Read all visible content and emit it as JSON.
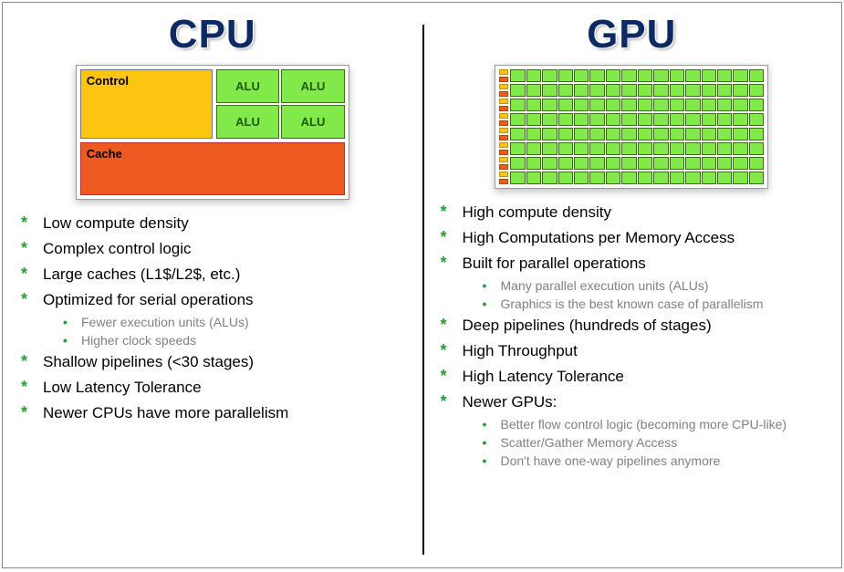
{
  "colors": {
    "heading": "#0d2a63",
    "bullet_star": "#2a9d3a",
    "sub_text": "#808080",
    "control_fill": "#fcc512",
    "alu_fill": "#82e94b",
    "alu_text": "#1e5a0e",
    "cache_fill": "#ee5b22",
    "gpu_core_fill": "#82e94b",
    "gpu_ctrl_top": "#fcc512",
    "gpu_ctrl_bottom": "#ee5b22",
    "divider": "#000000",
    "border": "#888888"
  },
  "cpu": {
    "title": "CPU",
    "diagram": {
      "control_label": "Control",
      "alu_label": "ALU",
      "alu_count": 4,
      "cache_label": "Cache"
    },
    "bullets": [
      {
        "text": "Low compute density"
      },
      {
        "text": "Complex control logic"
      },
      {
        "text": "Large caches (L1$/L2$, etc.)"
      },
      {
        "text": "Optimized for serial operations",
        "sub": [
          "Fewer execution units (ALUs)",
          "Higher clock speeds"
        ]
      },
      {
        "text": "Shallow pipelines (<30 stages)"
      },
      {
        "text": "Low Latency Tolerance"
      },
      {
        "text": "Newer CPUs have more parallelism"
      }
    ]
  },
  "gpu": {
    "title": "GPU",
    "diagram": {
      "rows": 8,
      "cores_per_row": 16
    },
    "bullets": [
      {
        "text": "High compute density"
      },
      {
        "text": "High Computations per Memory Access"
      },
      {
        "text": "Built for parallel operations",
        "sub": [
          "Many parallel execution units (ALUs)",
          "Graphics is the best known case of parallelism"
        ]
      },
      {
        "text": "Deep pipelines (hundreds of stages)"
      },
      {
        "text": "High Throughput"
      },
      {
        "text": "High Latency Tolerance"
      },
      {
        "text": "Newer GPUs:",
        "sub": [
          "Better flow control logic (becoming more CPU-like)",
          "Scatter/Gather Memory Access",
          "Don't have one-way pipelines anymore"
        ]
      }
    ]
  }
}
